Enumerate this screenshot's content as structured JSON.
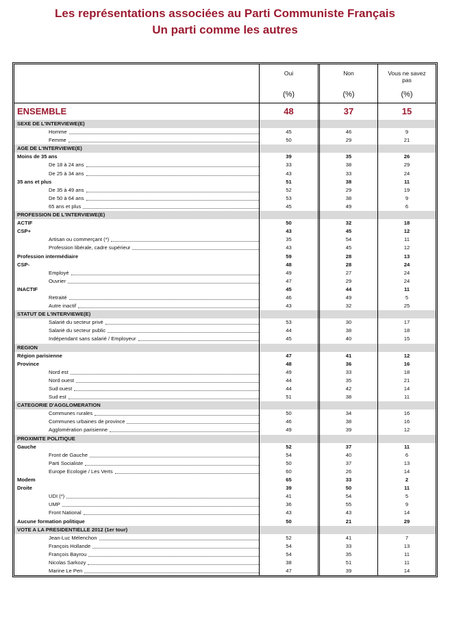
{
  "title": {
    "line1": "Les représentations associées au Parti Communiste Français",
    "line2": "Un parti comme les autres"
  },
  "accent_color": "#9b1b30",
  "columns": [
    {
      "label": "Oui",
      "unit": "(%)"
    },
    {
      "label": "Non",
      "unit": "(%)"
    },
    {
      "label": "Vous ne savez pas",
      "unit": "(%)"
    }
  ],
  "ensemble": {
    "label": "ENSEMBLE",
    "values": [
      "48",
      "37",
      "15"
    ]
  },
  "rows": [
    {
      "type": "section",
      "label": "SEXE DE L'INTERVIEWE(E)"
    },
    {
      "type": "sub",
      "label": "Homme",
      "values": [
        "45",
        "46",
        "9"
      ]
    },
    {
      "type": "sub",
      "label": "Femme",
      "values": [
        "50",
        "29",
        "21"
      ]
    },
    {
      "type": "section",
      "label": "AGE DE L'INTERVIEWE(E)"
    },
    {
      "type": "bold",
      "label": "Moins de 35 ans",
      "values": [
        "39",
        "35",
        "26"
      ]
    },
    {
      "type": "sub",
      "label": "De 18 à 24 ans",
      "values": [
        "33",
        "38",
        "29"
      ]
    },
    {
      "type": "sub",
      "label": "De 25 à 34 ans",
      "values": [
        "43",
        "33",
        "24"
      ]
    },
    {
      "type": "bold",
      "label": "35 ans et plus",
      "values": [
        "51",
        "38",
        "11"
      ]
    },
    {
      "type": "sub",
      "label": "De 35 à 49 ans",
      "values": [
        "52",
        "29",
        "19"
      ]
    },
    {
      "type": "sub",
      "label": "De 50 à 64 ans",
      "values": [
        "53",
        "38",
        "9"
      ]
    },
    {
      "type": "sub",
      "label": "65 ans et plus",
      "values": [
        "45",
        "49",
        "6"
      ]
    },
    {
      "type": "section",
      "label": "PROFESSION DE L'INTERVIEWE(E)"
    },
    {
      "type": "bold",
      "label": "ACTIF",
      "values": [
        "50",
        "32",
        "18"
      ]
    },
    {
      "type": "bold",
      "label": "CSP+",
      "values": [
        "43",
        "45",
        "12"
      ]
    },
    {
      "type": "sub",
      "label": "Artisan ou commerçant (*)",
      "values": [
        "35",
        "54",
        "11"
      ]
    },
    {
      "type": "sub",
      "label": "Profession libérale, cadre supérieur",
      "values": [
        "43",
        "45",
        "12"
      ]
    },
    {
      "type": "bold",
      "label": "Profession intermédiaire",
      "values": [
        "59",
        "28",
        "13"
      ]
    },
    {
      "type": "bold",
      "label": "CSP-",
      "values": [
        "48",
        "28",
        "24"
      ]
    },
    {
      "type": "sub",
      "label": "Employé",
      "values": [
        "49",
        "27",
        "24"
      ]
    },
    {
      "type": "sub",
      "label": "Ouvrier",
      "values": [
        "47",
        "29",
        "24"
      ]
    },
    {
      "type": "bold",
      "label": "INACTIF",
      "values": [
        "45",
        "44",
        "11"
      ]
    },
    {
      "type": "sub",
      "label": "Retraité",
      "values": [
        "46",
        "49",
        "5"
      ]
    },
    {
      "type": "sub",
      "label": "Autre inactif",
      "values": [
        "43",
        "32",
        "25"
      ]
    },
    {
      "type": "section",
      "label": "STATUT DE L'INTERVIEWE(E)"
    },
    {
      "type": "sub",
      "label": "Salarié du secteur privé",
      "values": [
        "53",
        "30",
        "17"
      ]
    },
    {
      "type": "sub",
      "label": "Salarié du secteur public",
      "values": [
        "44",
        "38",
        "18"
      ]
    },
    {
      "type": "sub",
      "label": "Indépendant sans salarié / Employeur",
      "values": [
        "45",
        "40",
        "15"
      ]
    },
    {
      "type": "section",
      "label": "REGION"
    },
    {
      "type": "bold",
      "label": "Région parisienne",
      "values": [
        "47",
        "41",
        "12"
      ]
    },
    {
      "type": "bold",
      "label": "Province",
      "values": [
        "48",
        "36",
        "16"
      ]
    },
    {
      "type": "sub",
      "label": "Nord est",
      "values": [
        "49",
        "33",
        "18"
      ]
    },
    {
      "type": "sub",
      "label": "Nord ouest",
      "values": [
        "44",
        "35",
        "21"
      ]
    },
    {
      "type": "sub",
      "label": "Sud ouest",
      "values": [
        "44",
        "42",
        "14"
      ]
    },
    {
      "type": "sub",
      "label": "Sud est",
      "values": [
        "51",
        "38",
        "11"
      ]
    },
    {
      "type": "section",
      "label": "CATEGORIE D'AGGLOMERATION"
    },
    {
      "type": "sub",
      "label": "Communes rurales",
      "values": [
        "50",
        "34",
        "16"
      ]
    },
    {
      "type": "sub",
      "label": "Communes urbaines de province",
      "values": [
        "46",
        "38",
        "16"
      ]
    },
    {
      "type": "sub",
      "label": "Agglomération parisienne",
      "values": [
        "49",
        "39",
        "12"
      ]
    },
    {
      "type": "section",
      "label": "PROXIMITE POLITIQUE"
    },
    {
      "type": "bold",
      "label": "Gauche",
      "values": [
        "52",
        "37",
        "11"
      ]
    },
    {
      "type": "sub",
      "label": "Front de Gauche",
      "values": [
        "54",
        "40",
        "6"
      ]
    },
    {
      "type": "sub",
      "label": "Parti Socialiste",
      "values": [
        "50",
        "37",
        "13"
      ]
    },
    {
      "type": "sub",
      "label": "Europe Ecologie / Les Verts",
      "values": [
        "60",
        "26",
        "14"
      ]
    },
    {
      "type": "bold",
      "label": "Modem",
      "values": [
        "65",
        "33",
        "2"
      ]
    },
    {
      "type": "bold",
      "label": "Droite",
      "values": [
        "39",
        "50",
        "11"
      ]
    },
    {
      "type": "sub",
      "label": "UDI (*)",
      "values": [
        "41",
        "54",
        "5"
      ]
    },
    {
      "type": "sub",
      "label": "UMP",
      "values": [
        "36",
        "55",
        "9"
      ]
    },
    {
      "type": "sub",
      "label": "Front National",
      "values": [
        "43",
        "43",
        "14"
      ]
    },
    {
      "type": "bold",
      "label": "Aucune formation politique",
      "values": [
        "50",
        "21",
        "29"
      ]
    },
    {
      "type": "section",
      "label": "VOTE A LA PRESIDENTIELLE 2012 (1er tour)"
    },
    {
      "type": "sub",
      "label": "Jean-Luc Mélenchon",
      "values": [
        "52",
        "41",
        "7"
      ]
    },
    {
      "type": "sub",
      "label": "François Hollande",
      "values": [
        "54",
        "33",
        "13"
      ]
    },
    {
      "type": "sub",
      "label": "François Bayrou",
      "values": [
        "54",
        "35",
        "11"
      ]
    },
    {
      "type": "sub",
      "label": "Nicolas Sarkozy",
      "values": [
        "38",
        "51",
        "11"
      ]
    },
    {
      "type": "sub",
      "label": "Marine Le Pen",
      "values": [
        "47",
        "39",
        "14"
      ]
    }
  ]
}
